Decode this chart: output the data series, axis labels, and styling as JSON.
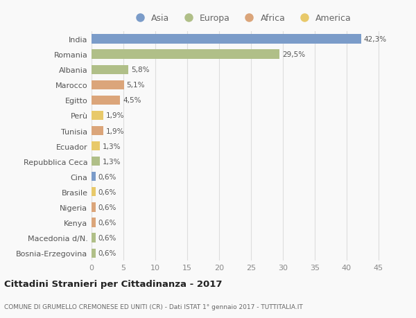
{
  "countries": [
    "India",
    "Romania",
    "Albania",
    "Marocco",
    "Egitto",
    "Perù",
    "Tunisia",
    "Ecuador",
    "Repubblica Ceca",
    "Cina",
    "Brasile",
    "Nigeria",
    "Kenya",
    "Macedonia d/N.",
    "Bosnia-Erzegovina"
  ],
  "values": [
    42.3,
    29.5,
    5.8,
    5.1,
    4.5,
    1.9,
    1.9,
    1.3,
    1.3,
    0.6,
    0.6,
    0.6,
    0.6,
    0.6,
    0.6
  ],
  "labels": [
    "42,3%",
    "29,5%",
    "5,8%",
    "5,1%",
    "4,5%",
    "1,9%",
    "1,9%",
    "1,3%",
    "1,3%",
    "0,6%",
    "0,6%",
    "0,6%",
    "0,6%",
    "0,6%",
    "0,6%"
  ],
  "continents": [
    "Asia",
    "Europa",
    "Europa",
    "Africa",
    "Africa",
    "America",
    "Africa",
    "America",
    "Europa",
    "Asia",
    "America",
    "Africa",
    "Africa",
    "Europa",
    "Europa"
  ],
  "colors": {
    "Asia": "#7b9cc9",
    "Europa": "#b0bf88",
    "Africa": "#dba57a",
    "America": "#e8c96a"
  },
  "legend_order": [
    "Asia",
    "Europa",
    "Africa",
    "America"
  ],
  "xlim": [
    0,
    47
  ],
  "xticks": [
    0,
    5,
    10,
    15,
    20,
    25,
    30,
    35,
    40,
    45
  ],
  "title": "Cittadini Stranieri per Cittadinanza - 2017",
  "subtitle": "COMUNE DI GRUMELLO CREMONESE ED UNITI (CR) - Dati ISTAT 1° gennaio 2017 - TUTTITALIA.IT",
  "bg_color": "#f9f9f9",
  "grid_color": "#dddddd",
  "bar_height": 0.6
}
